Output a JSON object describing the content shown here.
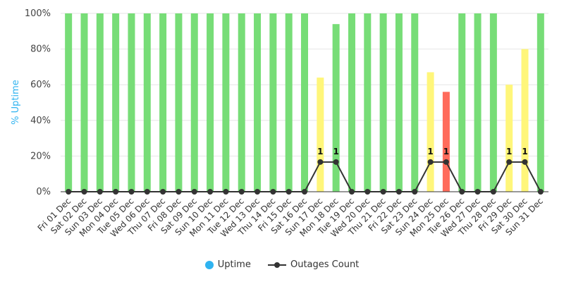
{
  "chart_data": {
    "type": "bar",
    "ylabel": "% Uptime",
    "ylim": [
      0,
      100
    ],
    "y_ticks": [
      "0%",
      "20%",
      "40%",
      "60%",
      "80%",
      "100%"
    ],
    "grid": true,
    "legend_position": "bottom",
    "categories": [
      "Fri 01 Dec",
      "Sat 02 Dec",
      "Sun 03 Dec",
      "Mon 04 Dec",
      "Tue 05 Dec",
      "Wed 06 Dec",
      "Thu 07 Dec",
      "Fri 08 Dec",
      "Sat 09 Dec",
      "Sun 10 Dec",
      "Mon 11 Dec",
      "Tue 12 Dec",
      "Wed 13 Dec",
      "Thu 14 Dec",
      "Fri 15 Dec",
      "Sat 16 Dec",
      "Sun 17 Dec",
      "Mon 18 Dec",
      "Tue 19 Dec",
      "Wed 20 Dec",
      "Thu 21 Dec",
      "Fri 22 Dec",
      "Sat 23 Dec",
      "Sun 24 Dec",
      "Mon 25 Dec",
      "Tue 26 Dec",
      "Wed 27 Dec",
      "Thu 28 Dec",
      "Fri 29 Dec",
      "Sat 30 Dec",
      "Sun 31 Dec"
    ],
    "series": [
      {
        "name": "Uptime",
        "kind": "bar",
        "color": "#2fb3f0",
        "values": [
          100,
          100,
          100,
          100,
          100,
          100,
          100,
          100,
          100,
          100,
          100,
          100,
          100,
          100,
          100,
          100,
          64,
          94,
          100,
          100,
          100,
          100,
          100,
          67,
          56,
          100,
          100,
          100,
          60,
          80,
          100
        ],
        "bar_colors": [
          "#77dd77",
          "#77dd77",
          "#77dd77",
          "#77dd77",
          "#77dd77",
          "#77dd77",
          "#77dd77",
          "#77dd77",
          "#77dd77",
          "#77dd77",
          "#77dd77",
          "#77dd77",
          "#77dd77",
          "#77dd77",
          "#77dd77",
          "#77dd77",
          "#fff67a",
          "#77dd77",
          "#77dd77",
          "#77dd77",
          "#77dd77",
          "#77dd77",
          "#77dd77",
          "#fff67a",
          "#ff6b5b",
          "#77dd77",
          "#77dd77",
          "#77dd77",
          "#fff67a",
          "#fff67a",
          "#77dd77"
        ]
      },
      {
        "name": "Outages Count",
        "kind": "line",
        "color": "#333333",
        "values": [
          0,
          0,
          0,
          0,
          0,
          0,
          0,
          0,
          0,
          0,
          0,
          0,
          0,
          0,
          0,
          0,
          1,
          1,
          0,
          0,
          0,
          0,
          0,
          1,
          1,
          0,
          0,
          0,
          1,
          1,
          0
        ],
        "data_labels": [
          "",
          "",
          "",
          "",
          "",
          "",
          "",
          "",
          "",
          "",
          "",
          "",
          "",
          "",
          "",
          "",
          "1",
          "1",
          "",
          "",
          "",
          "",
          "",
          "1",
          "1",
          "",
          "",
          "",
          "1",
          "1",
          ""
        ],
        "axis_max": 6
      }
    ]
  }
}
